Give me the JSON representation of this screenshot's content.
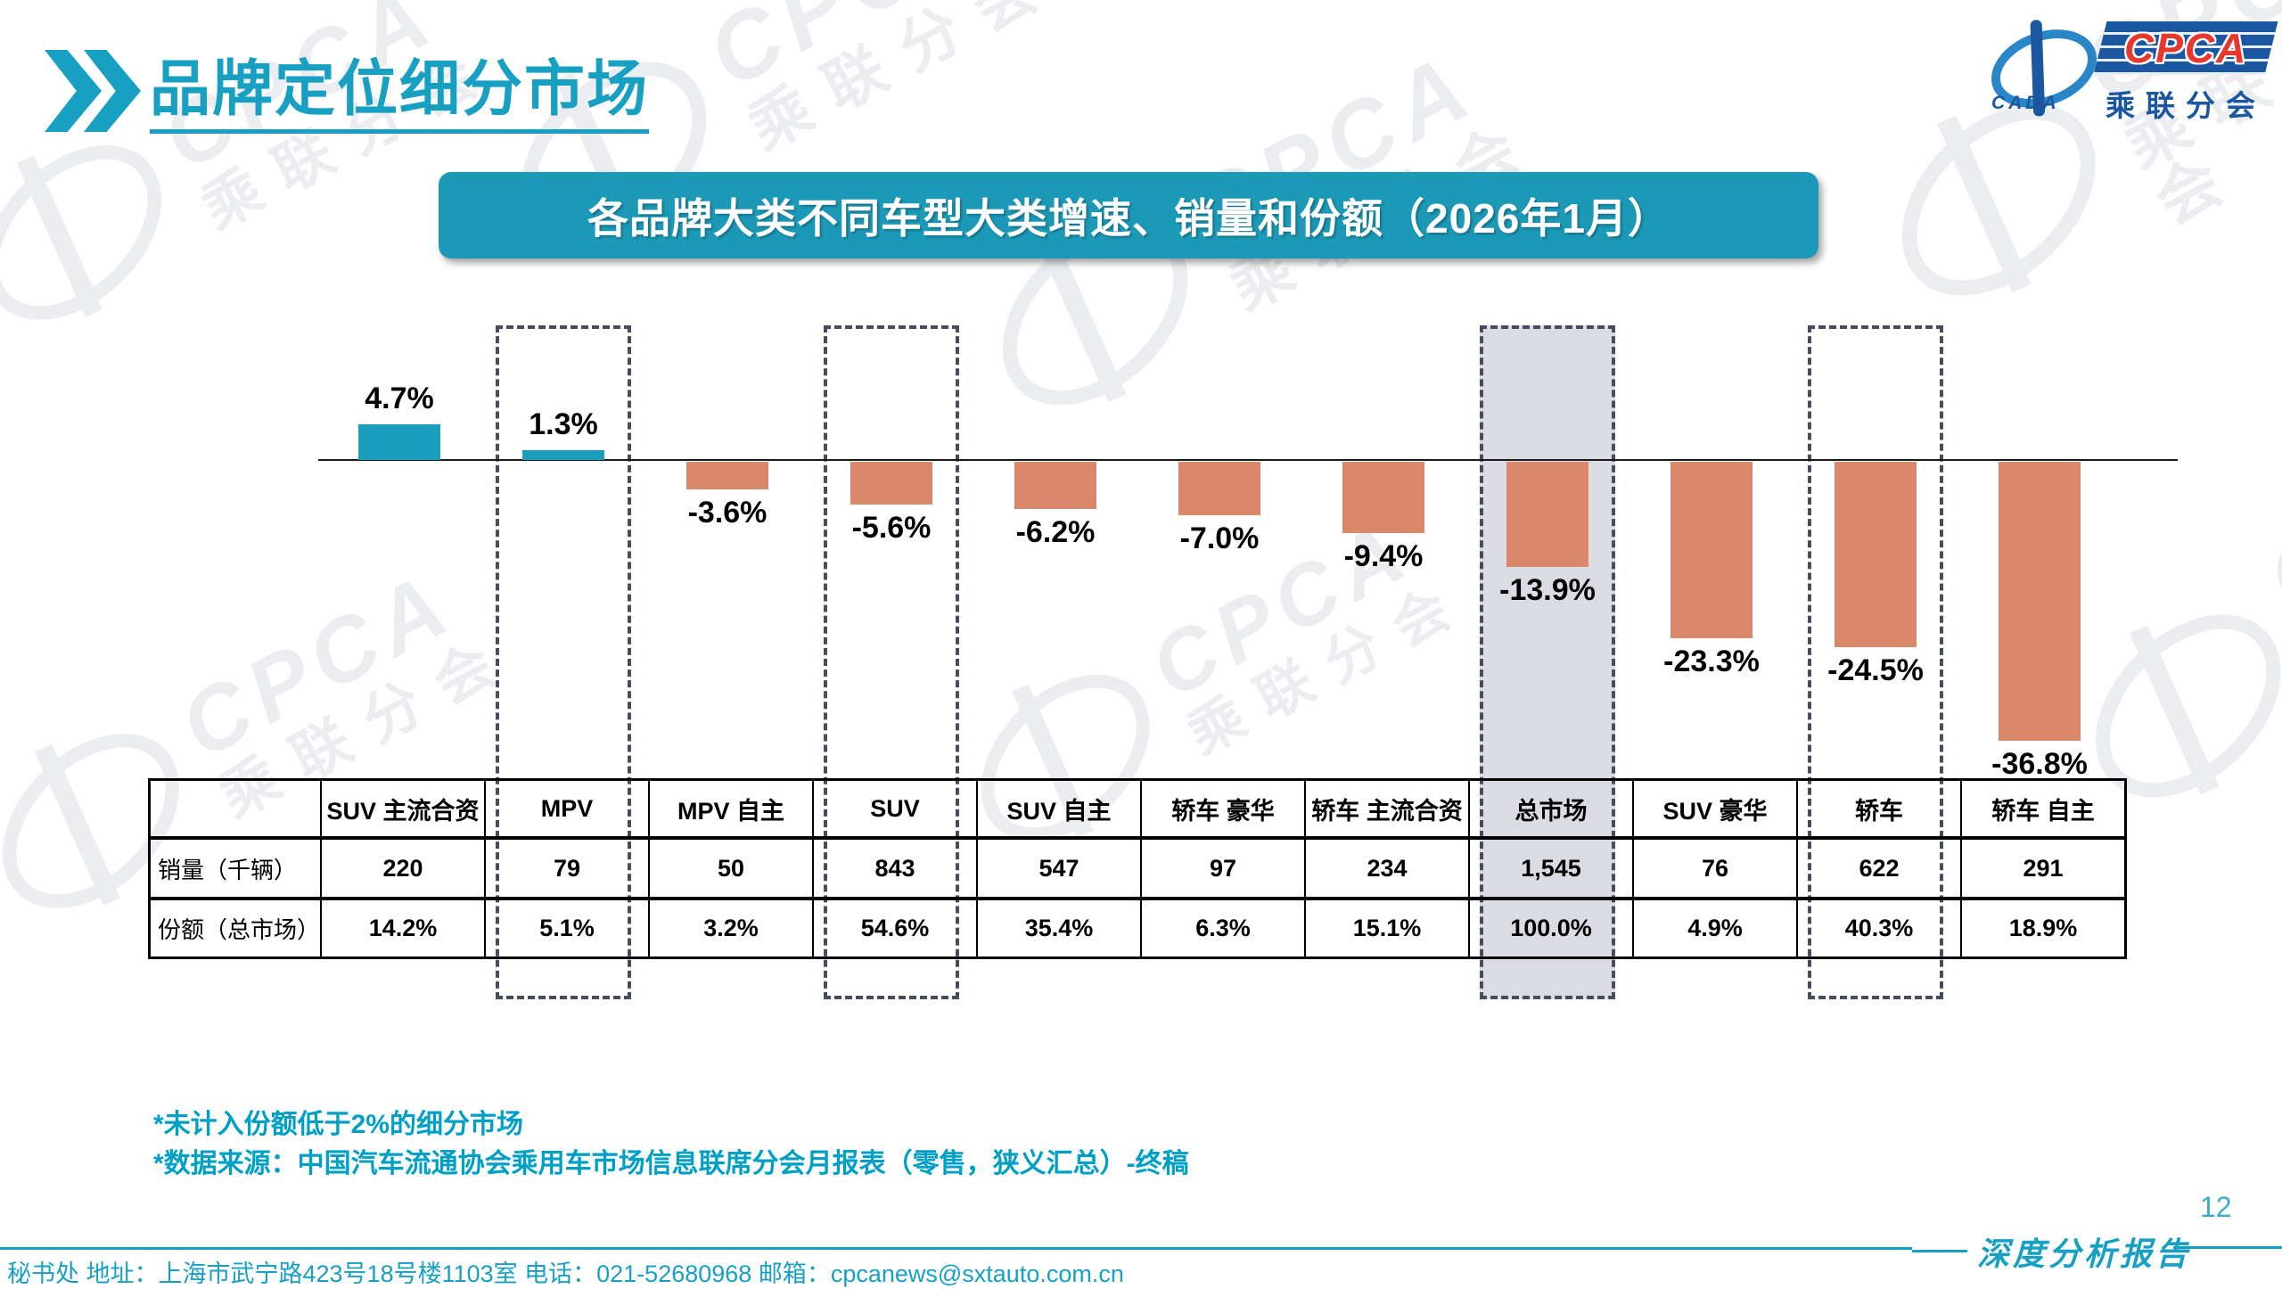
{
  "slide": {
    "header": {
      "title": "品牌定位细分市场",
      "chevron_icon": "double-chevron-right-icon"
    },
    "logo": {
      "cpca": "CPCA",
      "cada": "CADA",
      "cn_name": "乘联分会"
    },
    "chart_title": "各品牌大类不同车型大类增速、销量和份额（2026年1月）",
    "footnotes": [
      "*未计入份额低于2%的细分市场",
      "*数据来源：中国汽车流通协会乘用车市场信息联席分会月报表（零售，狭义汇总）-终稿"
    ],
    "footer": {
      "contact": "秘书处  地址：上海市武宁路423号18号楼1103室 电话：021-52680968  邮箱：cpcanews@sxtauto.com.cn",
      "report_label": "深度分析报告",
      "page_number": "12"
    }
  },
  "chart_data": {
    "type": "bar",
    "title": "各品牌大类不同车型大类增速、销量和份额（2026年1月）",
    "categories": [
      "SUV 主流合资",
      "MPV",
      "MPV 自主",
      "SUV",
      "SUV 自主",
      "轿车 豪华",
      "轿车 主流合资",
      "总市场",
      "SUV 豪华",
      "轿车",
      "轿车 自主"
    ],
    "growth_values": [
      4.7,
      1.3,
      -3.6,
      -5.6,
      -6.2,
      -7.0,
      -9.4,
      -13.9,
      -23.3,
      -24.5,
      -36.8
    ],
    "growth_labels": [
      "4.7%",
      "1.3%",
      "-3.6%",
      "-5.6%",
      "-6.2%",
      "-7.0%",
      "-9.4%",
      "-13.9%",
      "-23.3%",
      "-24.5%",
      "-36.8%"
    ],
    "highlighted_categories": [
      "MPV",
      "SUV",
      "总市场",
      "轿车"
    ],
    "highlighted_indices": [
      1,
      3,
      7,
      9
    ],
    "gray_filled_index": 7,
    "table": {
      "row_labels": [
        "销量（千辆）",
        "份额（总市场）"
      ],
      "sales_thousand": [
        "220",
        "79",
        "50",
        "843",
        "547",
        "97",
        "234",
        "1,545",
        "76",
        "622",
        "291"
      ],
      "share_total": [
        "14.2%",
        "5.1%",
        "3.2%",
        "54.6%",
        "35.4%",
        "6.3%",
        "15.1%",
        "100.0%",
        "4.9%",
        "40.3%",
        "18.9%"
      ]
    },
    "ylim": [
      -40,
      10
    ],
    "grid": false,
    "legend": false
  },
  "colors": {
    "teal_accent": "#17A0C2",
    "title_box_bg": "#1B99B6",
    "bar_positive": "#1B9EBD",
    "bar_negative": "#D9886B",
    "dashed_border": "#474D5C",
    "highlight_fill": "#DBDBE3",
    "logo_blue": "#1A57A0",
    "logo_red": "#E8372C"
  }
}
